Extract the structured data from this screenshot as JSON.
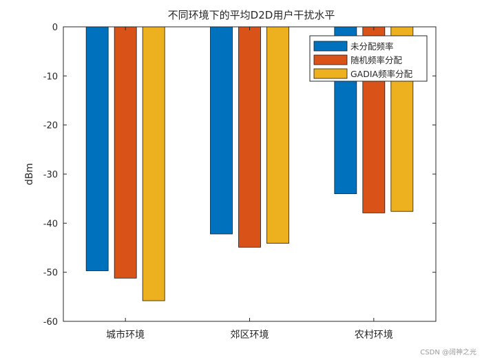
{
  "chart_data": {
    "type": "bar",
    "title": "不同环境下的平均D2D用户干扰水平",
    "xlabel": "",
    "ylabel": "dBm",
    "categories": [
      "城市环境",
      "郊区环境",
      "农村环境"
    ],
    "series": [
      {
        "name": "未分配频率",
        "color": "#0072BD",
        "values": [
          -49.7,
          -42.2,
          -34.0
        ]
      },
      {
        "name": "随机频率分配",
        "color": "#D95319",
        "values": [
          -51.2,
          -44.9,
          -37.9
        ]
      },
      {
        "name": "GADIA频率分配",
        "color": "#EDB120",
        "values": [
          -55.8,
          -44.1,
          -37.6
        ]
      }
    ],
    "ylim": [
      -60,
      0
    ],
    "yticks": [
      0,
      -10,
      -20,
      -30,
      -40,
      -50,
      -60
    ],
    "grid": false,
    "legend_position": "top-right"
  },
  "watermark": "CSDN @阔神之光"
}
